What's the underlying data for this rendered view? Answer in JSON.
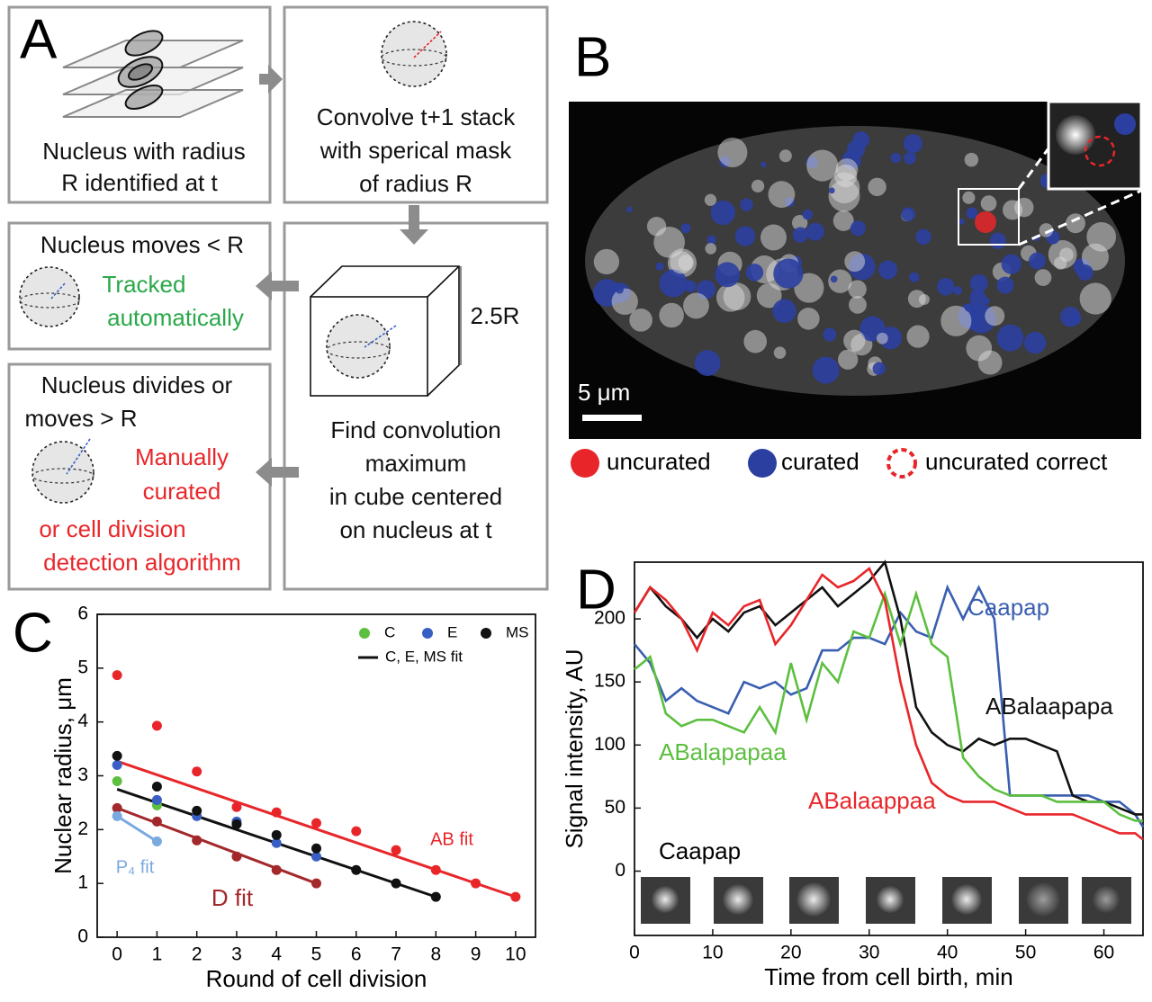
{
  "panel_a": {
    "label": "A",
    "box_identified": [
      "Nucleus with radius",
      "R identified at t"
    ],
    "box_convolve": [
      "Convolve t+1 stack",
      "with sperical mask",
      "of radius R"
    ],
    "box_moves": {
      "title": "Nucleus moves < R",
      "result": [
        "Tracked",
        "automatically"
      ]
    },
    "box_find": {
      "cube_label": "2.5R",
      "lines": [
        "Find convolution",
        "maximum",
        "in cube centered",
        "on nucleus at t"
      ]
    },
    "box_divides": {
      "title": [
        "Nucleus divides or",
        "moves > R"
      ],
      "result": [
        "Manually",
        "curated",
        "or cell division",
        "detection algorithm"
      ]
    }
  },
  "panel_b": {
    "label": "B",
    "scale_bar": "5 μm",
    "legend": [
      "uncurated",
      "curated",
      "uncurated correct"
    ]
  },
  "chart_data": [
    {
      "type": "scatter",
      "label": "C",
      "x_label": "Round of cell division",
      "y_label": "Nuclear radius, μm",
      "xlim": [
        -0.5,
        10.5
      ],
      "ylim": [
        0,
        6
      ],
      "xticks": [
        0,
        1,
        2,
        3,
        4,
        5,
        6,
        7,
        8,
        9,
        10
      ],
      "yticks": [
        0,
        1,
        2,
        3,
        4,
        5,
        6
      ],
      "series": [
        {
          "name": "C",
          "color": "#5cbf3f",
          "x": [
            0,
            1
          ],
          "values": [
            2.9,
            2.45
          ]
        },
        {
          "name": "E",
          "color": "#3a5fc4",
          "x": [
            0,
            1,
            2,
            3,
            4,
            5
          ],
          "values": [
            3.2,
            2.55,
            2.25,
            2.15,
            1.75,
            1.5
          ]
        },
        {
          "name": "MS",
          "color": "#111111",
          "x": [
            0,
            1,
            2,
            3,
            4,
            5,
            6,
            7,
            8
          ],
          "values": [
            3.37,
            2.8,
            2.35,
            2.1,
            1.9,
            1.65,
            1.25,
            1.0,
            0.75
          ]
        }
      ],
      "points": [
        {
          "color": "#e8262a",
          "x": [
            0,
            1,
            2,
            3,
            4,
            5,
            6,
            7,
            8,
            9,
            10
          ],
          "values": [
            4.87,
            3.93,
            3.08,
            2.42,
            2.32,
            2.12,
            1.97,
            1.62,
            1.25,
            1.0,
            0.75
          ]
        },
        {
          "color": "#a3282b",
          "x": [
            0,
            1,
            2,
            3,
            4,
            5
          ],
          "values": [
            2.4,
            2.15,
            1.8,
            1.5,
            1.25,
            1.0
          ]
        },
        {
          "color": "#7aa9e0",
          "x": [
            0,
            1
          ],
          "values": [
            2.25,
            1.78
          ]
        }
      ],
      "fits": [
        {
          "label": "C, E, MS fit",
          "color": "#111111",
          "x": [
            0,
            8
          ],
          "values": [
            2.75,
            0.75
          ]
        },
        {
          "label": "AB fit",
          "color": "#e8262a",
          "x": [
            0,
            10
          ],
          "values": [
            3.27,
            0.75
          ]
        },
        {
          "label": "D fit",
          "color": "#a3282b",
          "x": [
            0,
            5
          ],
          "values": [
            2.4,
            1.0
          ]
        },
        {
          "label": "P₄ fit",
          "color": "#7aa9e0",
          "x": [
            0,
            1
          ],
          "values": [
            2.25,
            1.78
          ]
        }
      ]
    },
    {
      "type": "line",
      "label": "D",
      "x_label": "Time from cell birth, min",
      "y_label": "Signal intensity, AU",
      "xlim": [
        0,
        65
      ],
      "ylim": [
        -51,
        245
      ],
      "xticks": [
        0,
        10,
        20,
        30,
        40,
        50,
        60
      ],
      "yticks": [
        0,
        50,
        100,
        150,
        200
      ],
      "thumbnail_label": "Caapap",
      "x": [
        0,
        2,
        4,
        6,
        8,
        10,
        12,
        14,
        16,
        18,
        20,
        22,
        24,
        26,
        28,
        30,
        32,
        34,
        36,
        38,
        40,
        42,
        44,
        46,
        48,
        50,
        52,
        54,
        56,
        58,
        60,
        62,
        64,
        65
      ],
      "series": [
        {
          "name": "Caapap",
          "color": "#3a5fb0",
          "values": [
            180,
            165,
            135,
            145,
            135,
            130,
            125,
            150,
            145,
            150,
            140,
            145,
            175,
            175,
            185,
            185,
            180,
            205,
            190,
            185,
            225,
            200,
            225,
            200,
            60,
            60,
            60,
            60,
            60,
            60,
            55,
            55,
            45,
            35
          ]
        },
        {
          "name": "ABalaapapa",
          "color": "#111111",
          "values": [
            205,
            225,
            210,
            200,
            185,
            200,
            190,
            205,
            210,
            195,
            205,
            215,
            225,
            210,
            220,
            230,
            245,
            200,
            130,
            110,
            100,
            95,
            105,
            100,
            105,
            105,
            100,
            95,
            60,
            55,
            55,
            50,
            45,
            45
          ]
        },
        {
          "name": "ABalapapaa",
          "color": "#5cbf3f",
          "values": [
            160,
            170,
            125,
            115,
            120,
            120,
            115,
            110,
            130,
            110,
            165,
            120,
            165,
            150,
            190,
            185,
            220,
            180,
            220,
            180,
            170,
            90,
            75,
            65,
            60,
            60,
            60,
            55,
            55,
            55,
            55,
            45,
            40,
            40
          ]
        },
        {
          "name": "ABalaappaa",
          "color": "#e8262a",
          "values": [
            205,
            225,
            215,
            200,
            175,
            205,
            195,
            210,
            215,
            180,
            195,
            215,
            235,
            225,
            230,
            240,
            215,
            150,
            100,
            70,
            60,
            55,
            55,
            55,
            50,
            45,
            45,
            45,
            45,
            40,
            35,
            30,
            30,
            25
          ]
        }
      ]
    }
  ]
}
